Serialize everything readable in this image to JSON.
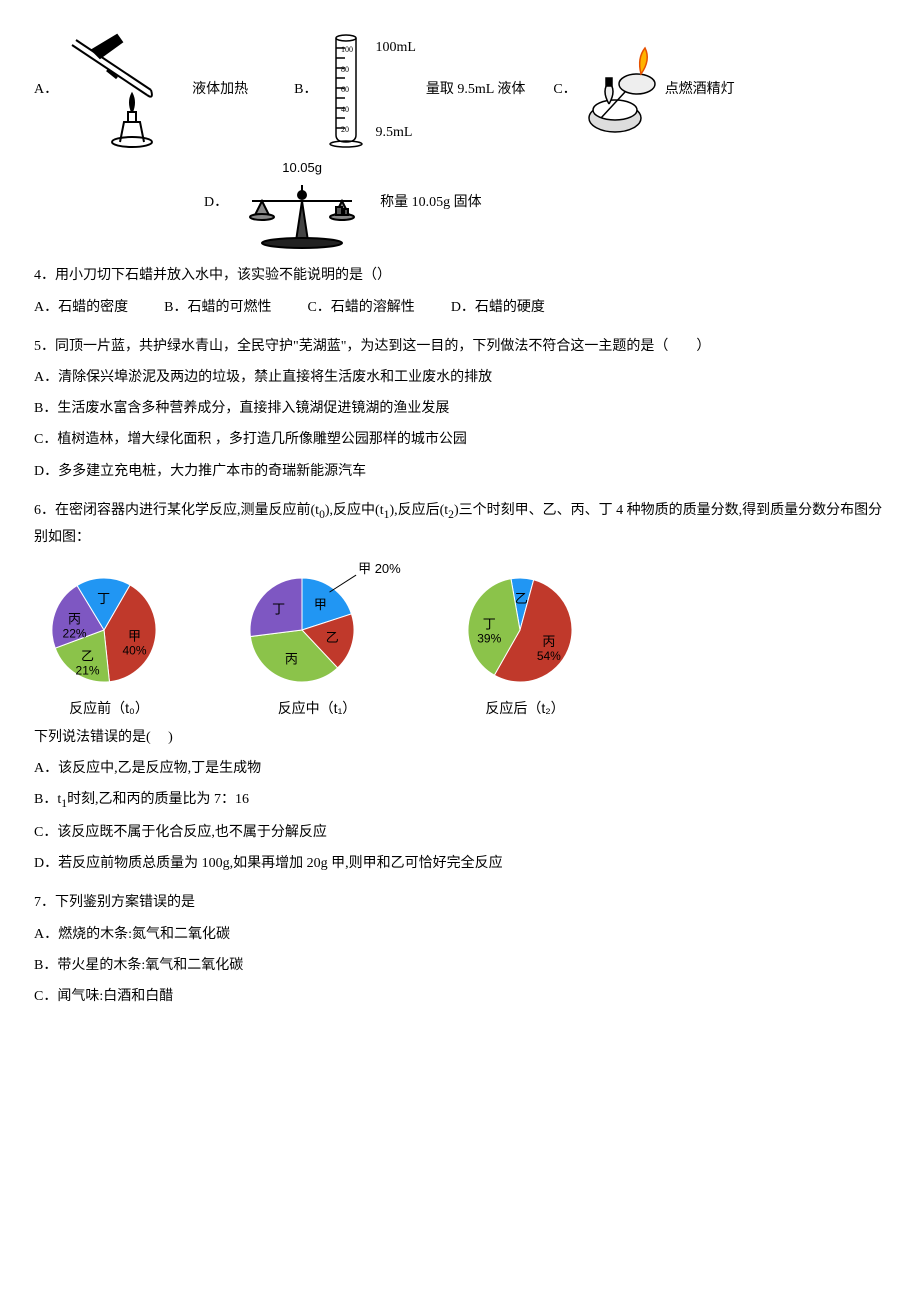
{
  "q3": {
    "optA": {
      "label": "A．",
      "text": "液体加热"
    },
    "optB": {
      "label": "B．",
      "text": "量取 9.5mL 液体",
      "top": "100mL",
      "bottom": "9.5mL"
    },
    "optC": {
      "label": "C．",
      "text": "点燃酒精灯"
    },
    "optD": {
      "label": "D．",
      "balance_label": "10.05g",
      "text": "称量 10.05g 固体"
    }
  },
  "q4": {
    "stem": "4．用小刀切下石蜡并放入水中，该实验不能说明的是（）",
    "A": "A．石蜡的密度",
    "B": "B．石蜡的可燃性",
    "C": "C．石蜡的溶解性",
    "D": "D．石蜡的硬度"
  },
  "q5": {
    "stem": "5．同顶一片蓝，共护绿水青山，全民守护\"芜湖蓝\"，为达到这一目的，下列做法不符合这一主题的是（　　）",
    "A": "A．清除保兴埠淤泥及两边的垃圾，禁止直接将生活废水和工业废水的排放",
    "B": "B．生活废水富含多种营养成分，直接排入镜湖促进镜湖的渔业发展",
    "C": "C．植树造林，增大绿化面积 ，多打造几所像雕塑公园那样的城市公园",
    "D": "D．多多建立充电桩，大力推广本市的奇瑞新能源汽车"
  },
  "q6": {
    "stem_a": "6．在密闭容器内进行某化学反应,测量反应前(t",
    "stem_b": "),反应中(t",
    "stem_c": "),反应后(t",
    "stem_d": ")三个时刻甲、乙、丙、丁 4 种物质的质量分数,得到质量分数分布图分别如图：",
    "sub0": "0",
    "sub1": "1",
    "sub2": "2",
    "colors": {
      "jia": "#c0392b",
      "yi": "#8bc34a",
      "bing": "#3b5998",
      "ding": "#7e57c2",
      "blue": "#2196f3"
    },
    "pies": {
      "t0": {
        "caption": "反应前（t₀）",
        "slices": [
          {
            "name": "甲",
            "value": 40,
            "color": "#c0392b",
            "pct": "40%"
          },
          {
            "name": "乙",
            "value": 21,
            "color": "#8bc34a",
            "pct": "21%"
          },
          {
            "name": "丙",
            "value": 22,
            "color": "#7e57c2",
            "pct": "22%"
          },
          {
            "name": "丁",
            "value": 17,
            "color": "#2196f3",
            "pct": null
          }
        ]
      },
      "t1": {
        "caption": "反应中（t₁）",
        "slices": [
          {
            "name": "甲",
            "value": 20,
            "color": "#2196f3",
            "pct": "甲 20%"
          },
          {
            "name": "乙",
            "value": 18,
            "color": "#c0392b",
            "pct": null
          },
          {
            "name": "丙",
            "value": 35,
            "color": "#8bc34a",
            "pct": null
          },
          {
            "name": "丁",
            "value": 27,
            "color": "#7e57c2",
            "pct": null
          }
        ]
      },
      "t2": {
        "caption": "反应后（t₂）",
        "slices": [
          {
            "name": "乙",
            "value": 7,
            "color": "#2196f3",
            "pct": null
          },
          {
            "name": "丙",
            "value": 54,
            "color": "#c0392b",
            "pct": "54%"
          },
          {
            "name": "丁",
            "value": 39,
            "color": "#8bc34a",
            "pct": "39%"
          }
        ]
      }
    },
    "after": "下列说法错误的是(　  )",
    "A": "A．该反应中,乙是反应物,丁是生成物",
    "B_a": "B．t",
    "B_sub": "1",
    "B_b": "时刻,乙和丙的质量比为 7：16",
    "C": "C．该反应既不属于化合反应,也不属于分解反应",
    "D": "D．若反应前物质总质量为 100g,如果再增加 20g 甲,则甲和乙可恰好完全反应"
  },
  "q7": {
    "stem": "7．下列鉴别方案错误的是",
    "A": "A．燃烧的木条:氮气和二氧化碳",
    "B": "B．带火星的木条:氧气和二氧化碳",
    "C": "C．闻气味:白酒和白醋"
  }
}
